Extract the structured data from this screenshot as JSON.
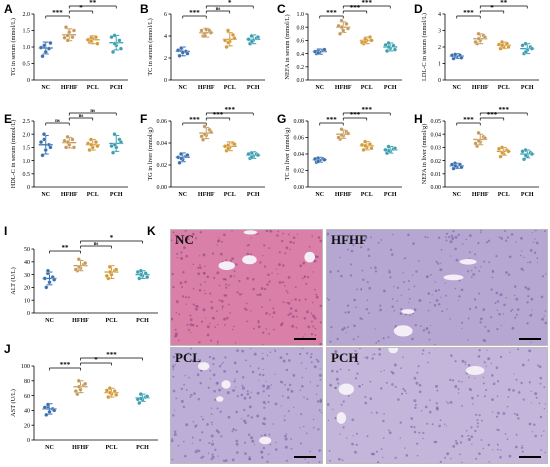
{
  "groups": [
    "NC",
    "HFHF",
    "PCL",
    "PCH"
  ],
  "group_colors": [
    "#3a6fb0",
    "#c69a5a",
    "#d39a3a",
    "#3a9fb0"
  ],
  "chart_data": [
    {
      "id": "A",
      "type": "scatter",
      "ylabel": "TG in serum (mmol/L)",
      "ylim": [
        0,
        2.0
      ],
      "yticks": [
        "0",
        "0.5",
        "1.0",
        "1.5",
        "2.0"
      ],
      "values": [
        0.97,
        1.37,
        1.22,
        1.13
      ],
      "sd": [
        0.18,
        0.18,
        0.12,
        0.22
      ],
      "points": [
        [
          0.72,
          0.85,
          0.95,
          1.0,
          1.05,
          1.12,
          0.98
        ],
        [
          1.6,
          1.45,
          1.3,
          1.35,
          1.2,
          1.5,
          1.28
        ],
        [
          1.15,
          1.25,
          1.3,
          1.18,
          1.28,
          1.1,
          1.22
        ],
        [
          0.85,
          1.05,
          1.2,
          1.35,
          1.1,
          0.95,
          1.3
        ]
      ],
      "sig": [
        {
          "from": 0,
          "to": 1,
          "label": "***",
          "level": 1
        },
        {
          "from": 1,
          "to": 2,
          "label": "*",
          "level": 2
        },
        {
          "from": 1,
          "to": 3,
          "label": "**",
          "level": 3
        }
      ]
    },
    {
      "id": "B",
      "type": "scatter",
      "ylabel": "TC in serum (mmol/L)",
      "ylim": [
        0,
        6
      ],
      "yticks": [
        "0",
        "2",
        "4",
        "6"
      ],
      "values": [
        2.6,
        4.3,
        3.7,
        3.7
      ],
      "sd": [
        0.4,
        0.4,
        0.6,
        0.4
      ],
      "points": [
        [
          2.2,
          2.5,
          2.6,
          2.8,
          2.9,
          2.4,
          2.7
        ],
        [
          4.0,
          4.6,
          4.5,
          4.2,
          4.0,
          4.3,
          4.5
        ],
        [
          3.0,
          3.5,
          4.1,
          4.5,
          3.4,
          3.8,
          3.6
        ],
        [
          3.3,
          3.6,
          3.8,
          4.0,
          3.5,
          3.9,
          3.7
        ]
      ],
      "sig": [
        {
          "from": 0,
          "to": 1,
          "label": "***",
          "level": 1
        },
        {
          "from": 1,
          "to": 2,
          "label": "ns",
          "level": 2
        },
        {
          "from": 1,
          "to": 3,
          "label": "*",
          "level": 3
        }
      ]
    },
    {
      "id": "C",
      "type": "scatter",
      "ylabel": "NEFA in serum (mmol/L)",
      "ylim": [
        0,
        1.0
      ],
      "yticks": [
        "0.0",
        "0.2",
        "0.4",
        "0.6",
        "0.8",
        "1.0"
      ],
      "values": [
        0.43,
        0.8,
        0.6,
        0.5
      ],
      "sd": [
        0.04,
        0.08,
        0.05,
        0.06
      ],
      "points": [
        [
          0.4,
          0.42,
          0.45,
          0.44,
          0.41,
          0.46,
          0.43
        ],
        [
          0.7,
          0.75,
          0.85,
          0.9,
          0.8,
          0.78,
          0.82
        ],
        [
          0.55,
          0.6,
          0.65,
          0.58,
          0.62,
          0.6,
          0.57
        ],
        [
          0.44,
          0.48,
          0.52,
          0.56,
          0.5,
          0.46,
          0.53
        ]
      ],
      "sig": [
        {
          "from": 0,
          "to": 1,
          "label": "***",
          "level": 1
        },
        {
          "from": 1,
          "to": 2,
          "label": "***",
          "level": 2
        },
        {
          "from": 1,
          "to": 3,
          "label": "***",
          "level": 3
        }
      ]
    },
    {
      "id": "D",
      "type": "scatter",
      "ylabel": "LDL-C in serum (mmol/L)",
      "ylim": [
        0,
        4
      ],
      "yticks": [
        "0",
        "1",
        "2",
        "3",
        "4"
      ],
      "values": [
        1.45,
        2.5,
        2.1,
        1.9
      ],
      "sd": [
        0.15,
        0.3,
        0.2,
        0.3
      ],
      "points": [
        [
          1.3,
          1.4,
          1.5,
          1.45,
          1.55,
          1.35,
          1.5
        ],
        [
          2.2,
          2.4,
          2.7,
          2.8,
          2.5,
          2.6,
          2.3
        ],
        [
          1.9,
          2.0,
          2.2,
          2.3,
          2.1,
          2.0,
          2.15
        ],
        [
          1.6,
          1.8,
          2.0,
          2.2,
          1.7,
          1.9,
          2.1
        ]
      ],
      "sig": [
        {
          "from": 0,
          "to": 1,
          "label": "***",
          "level": 1
        },
        {
          "from": 1,
          "to": 2,
          "label": "*",
          "level": 2
        },
        {
          "from": 1,
          "to": 3,
          "label": "**",
          "level": 3
        }
      ]
    },
    {
      "id": "E",
      "type": "scatter",
      "ylabel": "HDL-C in serum (mmol/L)",
      "ylim": [
        0,
        2.5
      ],
      "yticks": [
        "0",
        "0.5",
        "1.0",
        "1.5",
        "2.0",
        "2.5"
      ],
      "values": [
        1.6,
        1.68,
        1.6,
        1.65
      ],
      "sd": [
        0.35,
        0.2,
        0.2,
        0.3
      ],
      "points": [
        [
          1.2,
          1.4,
          1.6,
          2.0,
          1.8,
          1.5,
          1.7
        ],
        [
          1.5,
          1.6,
          1.8,
          1.9,
          1.7,
          1.5,
          1.75
        ],
        [
          1.4,
          1.5,
          1.7,
          1.8,
          1.6,
          1.55,
          1.65
        ],
        [
          1.3,
          1.5,
          1.8,
          2.0,
          1.6,
          1.7,
          1.55
        ]
      ],
      "sig": [
        {
          "from": 0,
          "to": 1,
          "label": "ns",
          "level": 1
        },
        {
          "from": 1,
          "to": 2,
          "label": "ns",
          "level": 2
        },
        {
          "from": 1,
          "to": 3,
          "label": "ns",
          "level": 3
        }
      ]
    },
    {
      "id": "F",
      "type": "scatter",
      "ylabel": "TG in liver (mmol/g)",
      "ylim": [
        0,
        0.06
      ],
      "yticks": [
        "0.00",
        "0.02",
        "0.04",
        "0.06"
      ],
      "values": [
        0.027,
        0.049,
        0.037,
        0.029
      ],
      "sd": [
        0.004,
        0.005,
        0.004,
        0.003
      ],
      "points": [
        [
          0.022,
          0.025,
          0.028,
          0.03,
          0.026,
          0.029,
          0.027
        ],
        [
          0.043,
          0.047,
          0.052,
          0.055,
          0.048,
          0.05,
          0.046
        ],
        [
          0.033,
          0.036,
          0.04,
          0.038,
          0.035,
          0.039,
          0.037
        ],
        [
          0.026,
          0.028,
          0.03,
          0.031,
          0.027,
          0.029,
          0.03
        ]
      ],
      "sig": [
        {
          "from": 0,
          "to": 1,
          "label": "***",
          "level": 1
        },
        {
          "from": 1,
          "to": 2,
          "label": "***",
          "level": 2
        },
        {
          "from": 1,
          "to": 3,
          "label": "***",
          "level": 3
        }
      ]
    },
    {
      "id": "G",
      "type": "scatter",
      "ylabel": "TC in liver (mmol/g)",
      "ylim": [
        0,
        0.08
      ],
      "yticks": [
        "0.00",
        "0.02",
        "0.04",
        "0.06",
        "0.08"
      ],
      "values": [
        0.033,
        0.064,
        0.05,
        0.045
      ],
      "sd": [
        0.003,
        0.005,
        0.005,
        0.004
      ],
      "points": [
        [
          0.03,
          0.032,
          0.034,
          0.035,
          0.031,
          0.033,
          0.034
        ],
        [
          0.058,
          0.062,
          0.067,
          0.07,
          0.063,
          0.065,
          0.06
        ],
        [
          0.045,
          0.048,
          0.052,
          0.055,
          0.05,
          0.047,
          0.051
        ],
        [
          0.041,
          0.043,
          0.046,
          0.049,
          0.044,
          0.047,
          0.045
        ]
      ],
      "sig": [
        {
          "from": 0,
          "to": 1,
          "label": "***",
          "level": 1
        },
        {
          "from": 1,
          "to": 2,
          "label": "***",
          "level": 2
        },
        {
          "from": 1,
          "to": 3,
          "label": "***",
          "level": 3
        }
      ]
    },
    {
      "id": "H",
      "type": "scatter",
      "ylabel": "NEFA in liver (mmol/g)",
      "ylim": [
        0,
        0.05
      ],
      "yticks": [
        "0.00",
        "0.01",
        "0.02",
        "0.03",
        "0.04",
        "0.05"
      ],
      "values": [
        0.016,
        0.036,
        0.027,
        0.025
      ],
      "sd": [
        0.002,
        0.004,
        0.003,
        0.003
      ],
      "points": [
        [
          0.014,
          0.015,
          0.017,
          0.018,
          0.016,
          0.015,
          0.017
        ],
        [
          0.031,
          0.034,
          0.038,
          0.041,
          0.035,
          0.037,
          0.033
        ],
        [
          0.023,
          0.025,
          0.028,
          0.03,
          0.026,
          0.027,
          0.029
        ],
        [
          0.021,
          0.023,
          0.026,
          0.028,
          0.024,
          0.025,
          0.027
        ]
      ],
      "sig": [
        {
          "from": 0,
          "to": 1,
          "label": "***",
          "level": 1
        },
        {
          "from": 1,
          "to": 2,
          "label": "***",
          "level": 2
        },
        {
          "from": 1,
          "to": 3,
          "label": "***",
          "level": 3
        }
      ]
    },
    {
      "id": "I",
      "type": "scatter",
      "ylabel": "ALT (U/L)",
      "ylim": [
        0,
        50
      ],
      "yticks": [
        "0",
        "10",
        "20",
        "30",
        "40",
        "50"
      ],
      "values": [
        27,
        37,
        32,
        30
      ],
      "sd": [
        5,
        4,
        5,
        3
      ],
      "points": [
        [
          20,
          24,
          28,
          31,
          33,
          26,
          27
        ],
        [
          33,
          35,
          38,
          42,
          36,
          39,
          34
        ],
        [
          27,
          30,
          33,
          36,
          32,
          34,
          29
        ],
        [
          27,
          29,
          31,
          33,
          30,
          28,
          32
        ]
      ],
      "sig": [
        {
          "from": 0,
          "to": 1,
          "label": "**",
          "level": 1
        },
        {
          "from": 1,
          "to": 2,
          "label": "ns",
          "level": 2
        },
        {
          "from": 1,
          "to": 3,
          "label": "*",
          "level": 3
        }
      ]
    },
    {
      "id": "J",
      "type": "scatter",
      "ylabel": "AST (U/L)",
      "ylim": [
        0,
        100
      ],
      "yticks": [
        "0",
        "20",
        "40",
        "60",
        "80",
        "100"
      ],
      "values": [
        42,
        72,
        64,
        57
      ],
      "sd": [
        7,
        8,
        6,
        5
      ],
      "points": [
        [
          34,
          38,
          42,
          45,
          48,
          40,
          44
        ],
        [
          62,
          68,
          74,
          80,
          72,
          76,
          66
        ],
        [
          58,
          62,
          66,
          70,
          64,
          61,
          67
        ],
        [
          50,
          54,
          58,
          62,
          56,
          59,
          55
        ]
      ],
      "sig": [
        {
          "from": 0,
          "to": 1,
          "label": "***",
          "level": 1
        },
        {
          "from": 1,
          "to": 2,
          "label": "*",
          "level": 2
        },
        {
          "from": 1,
          "to": 3,
          "label": "***",
          "level": 3
        }
      ]
    }
  ],
  "histology": {
    "panel_label": "K",
    "images": [
      {
        "label": "NC",
        "bg": "#d97fa8"
      },
      {
        "label": "HFHF",
        "bg": "#b6a6d2"
      },
      {
        "label": "PCL",
        "bg": "#bcaed6"
      },
      {
        "label": "PCH",
        "bg": "#c3b6da"
      }
    ]
  }
}
